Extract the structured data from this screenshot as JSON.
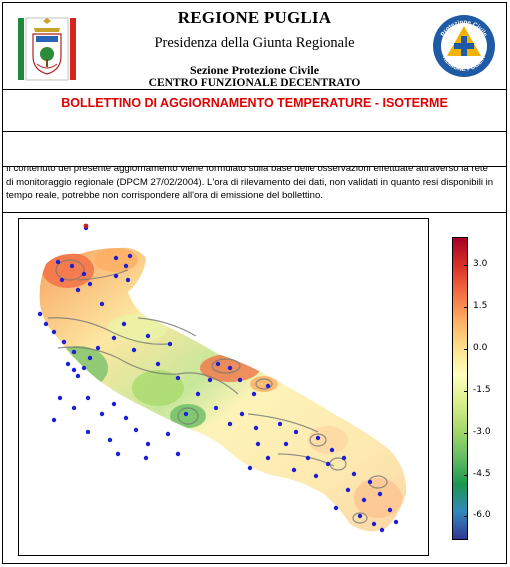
{
  "header": {
    "region": "REGIONE PUGLIA",
    "presidency": "Presidenza della Giunta Regionale",
    "section": "Sezione Protezione Civile",
    "centre": "CENTRO FUNZIONALE DECENTRATO",
    "logo_left": "regione-puglia-coat-of-arms",
    "logo_right_top": "Protezione Civile",
    "logo_right_bottom": "REGIONE PUGLIA"
  },
  "bulletin": {
    "title": "BOLLETTINO DI AGGIORNAMENTO TEMPERATURE - ISOTERME"
  },
  "disclaimer": {
    "text": "Il contenuto del presente aggiornamento viene formulato sulla base delle osservazioni effettuate attraverso la rete di monitoraggio regionale (DPCM 27/02/2004). L'ora di rilevamento dei dati, non validati in quanto resi disponibili in tempo reale, potrebbe non corrispondere all'ora di emissione del bollettino."
  },
  "colorbar": {
    "ticks": [
      "3.0",
      "1.5",
      "0.0",
      "-1.5",
      "-3.0",
      "-4.5",
      "-6.0"
    ],
    "colors": [
      "#a50026",
      "#d73027",
      "#f46d43",
      "#fdae61",
      "#fee08b",
      "#ffffbf",
      "#d9ef8b",
      "#a6d96a",
      "#66bd63",
      "#1a9850",
      "#3288bd",
      "#313695"
    ]
  }
}
